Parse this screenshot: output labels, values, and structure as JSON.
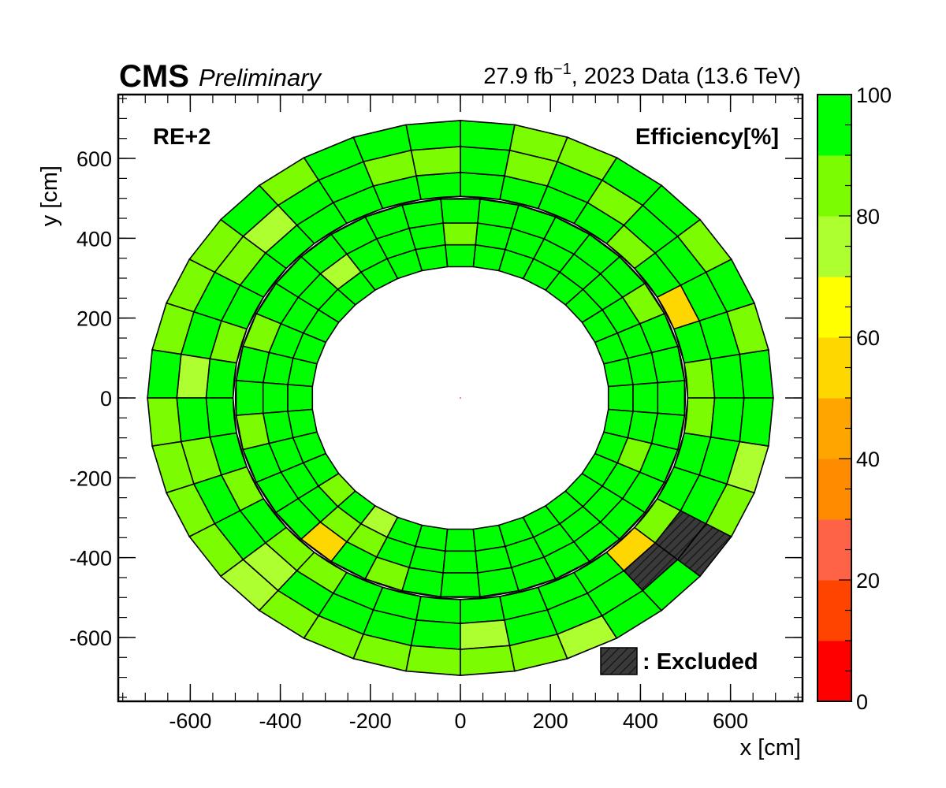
{
  "header": {
    "experiment": "CMS",
    "status": "Preliminary",
    "lumi_value": "27.9 fb",
    "lumi_exp": "−1",
    "lumi_rest": ", 2023 Data (13.6 TeV)"
  },
  "chart_data": {
    "type": "heatmap",
    "title": "",
    "station_label": "RE+2",
    "z_title": "Efficiency[%]",
    "xlabel": "x [cm]",
    "ylabel": "y [cm]",
    "xlim": [
      -760,
      760
    ],
    "ylim": [
      -760,
      760
    ],
    "x_ticks": [
      -600,
      -400,
      -200,
      0,
      200,
      400,
      600
    ],
    "x_tick_labels": [
      "-600",
      "-400",
      "-200",
      "0",
      "200",
      "400",
      "600"
    ],
    "y_ticks": [
      -600,
      -400,
      -200,
      0,
      200,
      400,
      600
    ],
    "y_tick_labels": [
      "-600",
      "-400",
      "-200",
      "0",
      "200",
      "400",
      "600"
    ],
    "zlim": [
      0,
      100
    ],
    "z_ticks": [
      0,
      20,
      40,
      60,
      80,
      100
    ],
    "z_tick_labels": [
      "0",
      "20",
      "40",
      "60",
      "80",
      "100"
    ],
    "palette": [
      "#ff0000",
      "#ff4400",
      "#ff6347",
      "#ff8c00",
      "#ffa500",
      "#ffd700",
      "#ffff00",
      "#adff2f",
      "#7cfc00",
      "#00ff00"
    ],
    "excluded_color": "#3a3a3a",
    "legend_excluded": ": Excluded",
    "rings": [
      {
        "name": "inner",
        "r_in": 330,
        "r_out": 500,
        "sectors": 36,
        "offset_deg": 0,
        "rows": 3,
        "radii": [
          330,
          385,
          440,
          500
        ]
      },
      {
        "name": "outer",
        "r_in": 505,
        "r_out": 695,
        "sectors": 36,
        "offset_deg": 5,
        "rows": 3,
        "radii": [
          505,
          565,
          630,
          695
        ]
      }
    ],
    "default_efficiency": 95,
    "cells": [
      {
        "ring": "outer",
        "sector": 27,
        "row": 2,
        "value": 85
      },
      {
        "ring": "outer",
        "sector": 26,
        "row": 2,
        "value": 85
      },
      {
        "ring": "outer",
        "sector": 24,
        "row": 2,
        "value": 85
      },
      {
        "ring": "outer",
        "sector": 23,
        "row": 2,
        "value": 85
      },
      {
        "ring": "outer",
        "sector": 22,
        "row": 2,
        "value": 75
      },
      {
        "ring": "outer",
        "sector": 22,
        "row": 1,
        "value": 75
      },
      {
        "ring": "outer",
        "sector": 21,
        "row": 2,
        "value": 85
      },
      {
        "ring": "outer",
        "sector": 20,
        "row": 2,
        "value": 85
      },
      {
        "ring": "outer",
        "sector": 19,
        "row": 2,
        "value": 85
      },
      {
        "ring": "outer",
        "sector": 19,
        "row": 1,
        "value": 85
      },
      {
        "ring": "outer",
        "sector": 18,
        "row": 2,
        "value": 85
      },
      {
        "ring": "outer",
        "sector": 17,
        "row": 1,
        "value": 75
      },
      {
        "ring": "outer",
        "sector": 16,
        "row": 2,
        "value": 85
      },
      {
        "ring": "outer",
        "sector": 15,
        "row": 2,
        "value": 85
      },
      {
        "ring": "outer",
        "sector": 14,
        "row": 2,
        "value": 85
      },
      {
        "ring": "outer",
        "sector": 13,
        "row": 1,
        "value": 75
      },
      {
        "ring": "outer",
        "sector": 12,
        "row": 2,
        "value": 85
      },
      {
        "ring": "outer",
        "sector": 10,
        "row": 1,
        "value": 85
      },
      {
        "ring": "outer",
        "sector": 9,
        "row": 1,
        "value": 85
      },
      {
        "ring": "outer",
        "sector": 7,
        "row": 2,
        "value": 85
      },
      {
        "ring": "outer",
        "sector": 7,
        "row": 1,
        "value": 85
      },
      {
        "ring": "outer",
        "sector": 6,
        "row": 2,
        "value": 85
      },
      {
        "ring": "outer",
        "sector": 5,
        "row": 1,
        "value": 85
      },
      {
        "ring": "outer",
        "sector": 3,
        "row": 2,
        "value": 85
      },
      {
        "ring": "outer",
        "sector": 1,
        "row": 2,
        "value": 85
      },
      {
        "ring": "outer",
        "sector": 34,
        "row": 2,
        "value": 75
      },
      {
        "ring": "outer",
        "sector": 33,
        "row": 2,
        "value": 85
      },
      {
        "ring": "outer",
        "sector": 32,
        "row": 0,
        "value": 85
      },
      {
        "ring": "outer",
        "sector": 32,
        "row": 1,
        "value": null
      },
      {
        "ring": "outer",
        "sector": 32,
        "row": 2,
        "value": null
      },
      {
        "ring": "outer",
        "sector": 31,
        "row": 1,
        "value": null
      },
      {
        "ring": "outer",
        "sector": 31,
        "row": 0,
        "value": 55
      },
      {
        "ring": "outer",
        "sector": 29,
        "row": 2,
        "value": 75
      },
      {
        "ring": "outer",
        "sector": 28,
        "row": 2,
        "value": 85
      },
      {
        "ring": "outer",
        "sector": 27,
        "row": 1,
        "value": 75
      },
      {
        "ring": "outer",
        "sector": 25,
        "row": 2,
        "value": 85
      },
      {
        "ring": "outer",
        "sector": 22,
        "row": 0,
        "value": 85
      },
      {
        "ring": "outer",
        "sector": 14,
        "row": 1,
        "value": 85
      },
      {
        "ring": "outer",
        "sector": 4,
        "row": 0,
        "value": 85
      },
      {
        "ring": "outer",
        "sector": 2,
        "row": 0,
        "value": 55
      },
      {
        "ring": "outer",
        "sector": 0,
        "row": 0,
        "value": 85
      },
      {
        "ring": "outer",
        "sector": 35,
        "row": 0,
        "value": 85
      },
      {
        "ring": "outer",
        "sector": 23,
        "row": 0,
        "value": 85
      },
      {
        "ring": "outer",
        "sector": 16,
        "row": 0,
        "value": 85
      },
      {
        "ring": "outer",
        "sector": 20,
        "row": 0,
        "value": 85
      },
      {
        "ring": "inner",
        "sector": 23,
        "row": 2,
        "value": 55
      },
      {
        "ring": "inner",
        "sector": 23,
        "row": 1,
        "value": 85
      },
      {
        "ring": "inner",
        "sector": 24,
        "row": 1,
        "value": 85
      },
      {
        "ring": "inner",
        "sector": 22,
        "row": 0,
        "value": 85
      },
      {
        "ring": "inner",
        "sector": 24,
        "row": 0,
        "value": 75
      },
      {
        "ring": "inner",
        "sector": 25,
        "row": 2,
        "value": 85
      },
      {
        "ring": "inner",
        "sector": 13,
        "row": 1,
        "value": 75
      },
      {
        "ring": "inner",
        "sector": 9,
        "row": 1,
        "value": 85
      },
      {
        "ring": "inner",
        "sector": 3,
        "row": 2,
        "value": 85
      },
      {
        "ring": "inner",
        "sector": 34,
        "row": 1,
        "value": 85
      },
      {
        "ring": "inner",
        "sector": 19,
        "row": 2,
        "value": 85
      },
      {
        "ring": "inner",
        "sector": 16,
        "row": 2,
        "value": 85
      }
    ]
  }
}
